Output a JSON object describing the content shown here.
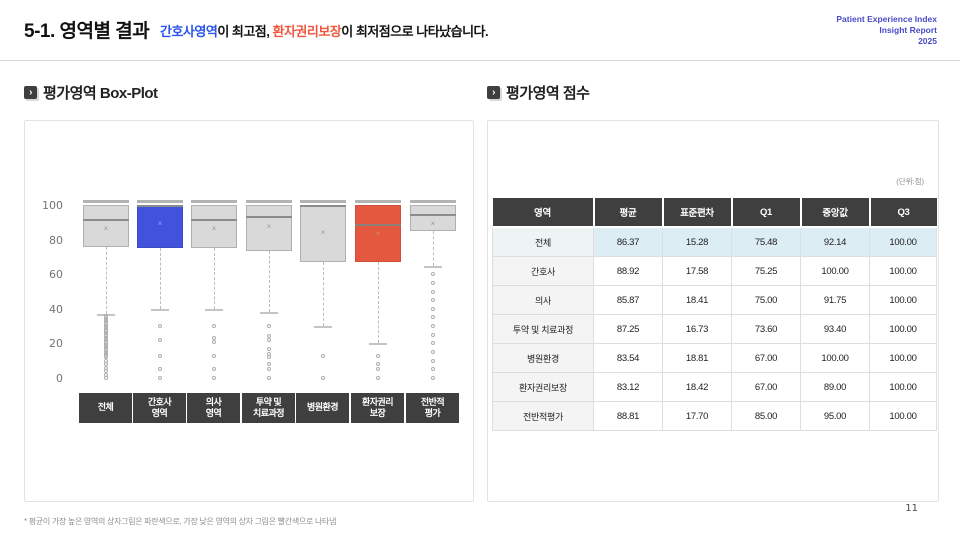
{
  "header": {
    "title": "5-1. 영역별 결과",
    "subtitle_parts": [
      {
        "text": "간호사영역",
        "color": "#2a53ef"
      },
      {
        "text": "이 최고점, ",
        "color": "#111111"
      },
      {
        "text": "환자권리보장",
        "color": "#f0573e"
      },
      {
        "text": "이 최저점으로 나타났습니다.",
        "color": "#111111"
      }
    ],
    "report_lines": [
      "Patient Experience Index",
      "Insight Report",
      "2025"
    ],
    "report_color": "#4a4ac8"
  },
  "sections": {
    "left_title": "평가영역 Box-Plot",
    "right_title": "평가영역 점수"
  },
  "chart_data": {
    "type": "boxplot",
    "title": "평가영역 Box-Plot",
    "ylim": [
      0,
      100
    ],
    "yticks": [
      100,
      80,
      60,
      40,
      20,
      0
    ],
    "grid": false,
    "colors": {
      "default": "#d9d9d9",
      "default_border": "#b0b0b0",
      "highest": "#4153dd",
      "highest_border": "#3a49c4",
      "lowest": "#e45840",
      "lowest_border": "#d04f38"
    },
    "series": [
      {
        "label_lines": [
          "전체"
        ],
        "q1": 75.48,
        "median": 92.14,
        "q3": 100,
        "mean": 86.37,
        "whisker_low": 37,
        "whisker_high": 100,
        "color_key": "default",
        "outliers": [
          36,
          35,
          34,
          33,
          32,
          31,
          30,
          29,
          28,
          27,
          26,
          25,
          24,
          23,
          22,
          21,
          20,
          19,
          18,
          17,
          16,
          15,
          14,
          13,
          12,
          10,
          8,
          6,
          4,
          2,
          0
        ]
      },
      {
        "label_lines": [
          "간호사",
          "영역"
        ],
        "q1": 75.25,
        "median": 100,
        "q3": 100,
        "mean": 88.92,
        "whisker_low": 40,
        "whisker_high": 100,
        "color_key": "highest",
        "outliers": [
          30,
          22,
          13,
          5,
          0
        ]
      },
      {
        "label_lines": [
          "의사",
          "영역"
        ],
        "q1": 75.0,
        "median": 91.75,
        "q3": 100,
        "mean": 85.87,
        "whisker_low": 40,
        "whisker_high": 100,
        "color_key": "default",
        "outliers": [
          30,
          23,
          21,
          13,
          5,
          0
        ]
      },
      {
        "label_lines": [
          "투약 및",
          "치료과정"
        ],
        "q1": 73.6,
        "median": 93.4,
        "q3": 100,
        "mean": 87.25,
        "whisker_low": 38,
        "whisker_high": 100,
        "color_key": "default",
        "outliers": [
          30,
          24,
          22,
          17,
          14,
          12,
          8,
          5,
          0
        ]
      },
      {
        "label_lines": [
          "병원환경"
        ],
        "q1": 67.0,
        "median": 100,
        "q3": 100,
        "mean": 83.54,
        "whisker_low": 30,
        "whisker_high": 100,
        "color_key": "default",
        "outliers": [
          13,
          0
        ]
      },
      {
        "label_lines": [
          "환자권리",
          "보장"
        ],
        "q1": 67.0,
        "median": 89.0,
        "q3": 100,
        "mean": 83.12,
        "whisker_low": 20,
        "whisker_high": 100,
        "color_key": "lowest",
        "outliers": [
          13,
          8,
          5,
          0
        ]
      },
      {
        "label_lines": [
          "전반적",
          "평가"
        ],
        "q1": 85.0,
        "median": 95.0,
        "q3": 100,
        "mean": 88.81,
        "whisker_low": 65,
        "whisker_high": 100,
        "color_key": "default",
        "outliers": [
          60,
          55,
          50,
          45,
          40,
          35,
          30,
          25,
          20,
          15,
          10,
          5,
          0
        ]
      }
    ]
  },
  "table": {
    "unit_note": "(단위:점)",
    "columns": [
      "영역",
      "평균",
      "표준편차",
      "Q1",
      "중앙값",
      "Q3"
    ],
    "rows": [
      {
        "label": "전체",
        "values": [
          "86.37",
          "15.28",
          "75.48",
          "92.14",
          "100.00"
        ],
        "highlight": true
      },
      {
        "label": "간호사",
        "values": [
          "88.92",
          "17.58",
          "75.25",
          "100.00",
          "100.00"
        ],
        "highlight": false
      },
      {
        "label": "의사",
        "values": [
          "85.87",
          "18.41",
          "75.00",
          "91.75",
          "100.00"
        ],
        "highlight": false
      },
      {
        "label": "투약 및 치료과정",
        "values": [
          "87.25",
          "16.73",
          "73.60",
          "93.40",
          "100.00"
        ],
        "highlight": false
      },
      {
        "label": "병원환경",
        "values": [
          "83.54",
          "18.81",
          "67.00",
          "100.00",
          "100.00"
        ],
        "highlight": false
      },
      {
        "label": "환자권리보장",
        "values": [
          "83.12",
          "18.42",
          "67.00",
          "89.00",
          "100.00"
        ],
        "highlight": false
      },
      {
        "label": "전반적평가",
        "values": [
          "88.81",
          "17.70",
          "85.00",
          "95.00",
          "100.00"
        ],
        "highlight": false
      }
    ]
  },
  "footnote": "* 평균이 가장 높은 영역의 상자그림은 파란색으로, 가장 낮은 영역의 상자 그림은 빨간색으로 나타냄",
  "page_number": "11"
}
